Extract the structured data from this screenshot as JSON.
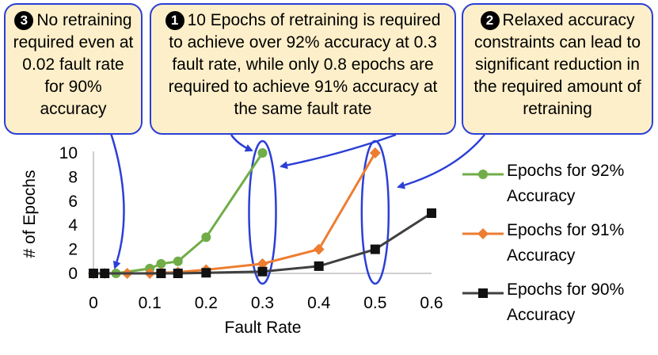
{
  "callouts": [
    {
      "id": "c3",
      "badge": "3",
      "text": "No retraining required even at 0.02 fault rate for 90% accuracy"
    },
    {
      "id": "c1",
      "badge": "1",
      "text": "10 Epochs of retraining is required to achieve over 92% accuracy at 0.3 fault rate, while only 0.8 epochs are required to achieve 91% accuracy at the same fault rate"
    },
    {
      "id": "c2",
      "badge": "2",
      "text": "Relaxed accuracy constraints can lead to significant reduction in the required amount of retraining"
    }
  ],
  "chart_data": {
    "type": "line",
    "xlabel": "Fault Rate",
    "ylabel": "# of Epochs",
    "xlim": [
      0,
      0.6
    ],
    "ylim": [
      0,
      10
    ],
    "x_ticks": [
      "0",
      "0.1",
      "0.2",
      "0.3",
      "0.4",
      "0.5",
      "0.6"
    ],
    "y_ticks": [
      "0",
      "2",
      "4",
      "6",
      "8",
      "10"
    ],
    "grid": false,
    "legend_position": "right",
    "series": [
      {
        "name": "Epochs for 92% Accuracy",
        "color": "#70ad47",
        "marker": "circle",
        "x": [
          0,
          0.02,
          0.04,
          0.1,
          0.12,
          0.15,
          0.2,
          0.3
        ],
        "y": [
          0,
          0,
          0,
          0.4,
          0.8,
          1.0,
          3.0,
          10.0
        ]
      },
      {
        "name": "Epochs for 91% Accuracy",
        "color": "#ed7d31",
        "marker": "diamond",
        "x": [
          0,
          0.02,
          0.06,
          0.1,
          0.12,
          0.15,
          0.2,
          0.3,
          0.4,
          0.5
        ],
        "y": [
          0,
          0,
          0,
          0,
          0.05,
          0.1,
          0.3,
          0.8,
          2.0,
          10.0
        ]
      },
      {
        "name": "Epochs for 90% Accuracy",
        "color": "#404040",
        "marker": "square",
        "x": [
          0,
          0.02,
          0.12,
          0.15,
          0.2,
          0.3,
          0.4,
          0.5,
          0.6
        ],
        "y": [
          0,
          0,
          0,
          0,
          0.05,
          0.15,
          0.6,
          2.0,
          5.0
        ]
      }
    ],
    "highlight_x": [
      0.3,
      0.5
    ]
  }
}
